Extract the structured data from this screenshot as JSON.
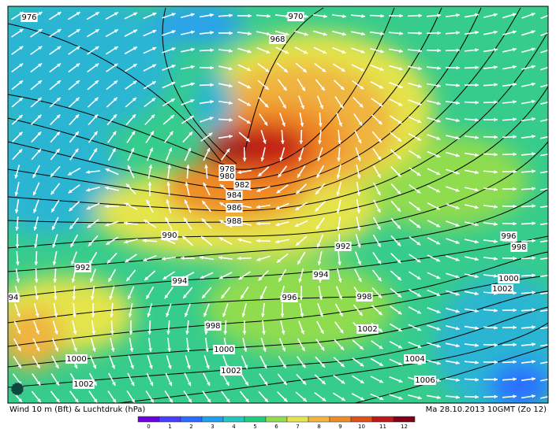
{
  "map": {
    "isobar_labels": [
      "976",
      "970",
      "968",
      "978",
      "980",
      "982",
      "984",
      "986",
      "988",
      "990",
      "992",
      "992",
      "994",
      "994",
      "996",
      "998",
      "998",
      "996",
      "998",
      "1000",
      "1002",
      "1000",
      "1002",
      "1004",
      "1000",
      "1002",
      "1002",
      "1006",
      "94"
    ],
    "footer_left": "Wind 10 m (Bft) & Luchtdruk (hPa)",
    "footer_right": "Ma 28.10.2013 10GMT (Zo 12)",
    "legend": {
      "labels": [
        "0",
        "1",
        "2",
        "3",
        "4",
        "5",
        "6",
        "7",
        "8",
        "9",
        "10",
        "11",
        "12"
      ],
      "colors": [
        "#6a00e0",
        "#4a3cff",
        "#2a6cff",
        "#1ea0f0",
        "#22c8c0",
        "#20cc80",
        "#90dc50",
        "#e4e44c",
        "#f0b440",
        "#f08c28",
        "#e0501c",
        "#c01818",
        "#80001c"
      ]
    }
  }
}
